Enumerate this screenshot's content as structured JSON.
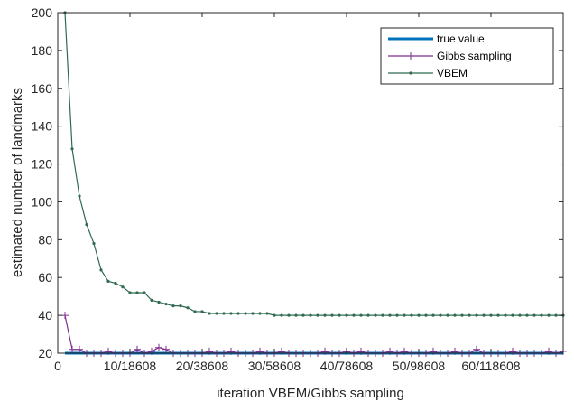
{
  "chart_data": {
    "type": "line",
    "title": "",
    "xlabel": "iteration VBEM/Gibbs sampling",
    "ylabel": "estimated number of landmarks",
    "xlim": [
      0,
      70
    ],
    "ylim": [
      20,
      200
    ],
    "yticks": [
      20,
      40,
      60,
      80,
      100,
      120,
      140,
      160,
      180,
      200
    ],
    "xticks": [
      0,
      10,
      20,
      30,
      40,
      50,
      60
    ],
    "xtick_labels": [
      "0",
      "10/18608",
      "20/38608",
      "30/58608",
      "40/78608",
      "50/98608",
      "60/118608"
    ],
    "grid": false,
    "legend_position": "top-right",
    "series": [
      {
        "name": "true value",
        "color": "#0072BD",
        "marker": "none",
        "x": [
          1,
          70
        ],
        "values": [
          20,
          20
        ]
      },
      {
        "name": "Gibbs sampling",
        "color": "#7E2F8E",
        "marker": "plus",
        "x": [
          1,
          2,
          3,
          4,
          5,
          6,
          7,
          8,
          9,
          10,
          11,
          12,
          13,
          14,
          15,
          16,
          17,
          18,
          19,
          20,
          21,
          22,
          23,
          24,
          25,
          26,
          27,
          28,
          29,
          30,
          31,
          32,
          33,
          34,
          35,
          36,
          37,
          38,
          39,
          40,
          41,
          42,
          43,
          44,
          45,
          46,
          47,
          48,
          49,
          50,
          51,
          52,
          53,
          54,
          55,
          56,
          57,
          58,
          59,
          60,
          61,
          62,
          63,
          64,
          65,
          66,
          67,
          68,
          69,
          70
        ],
        "values": [
          40,
          22,
          22,
          20,
          20,
          20,
          21,
          20,
          20,
          20,
          22,
          20,
          21,
          23,
          22,
          20,
          20,
          20,
          20,
          20,
          21,
          20,
          20,
          21,
          20,
          20,
          20,
          21,
          20,
          20,
          21,
          20,
          20,
          20,
          20,
          20,
          21,
          20,
          20,
          21,
          20,
          21,
          20,
          20,
          20,
          21,
          20,
          21,
          20,
          20,
          20,
          21,
          20,
          20,
          21,
          20,
          20,
          22,
          20,
          20,
          20,
          20,
          21,
          20,
          20,
          20,
          20,
          21,
          20,
          21
        ]
      },
      {
        "name": "VBEM",
        "color": "#2F6B50",
        "marker": "dot",
        "x": [
          1,
          2,
          3,
          4,
          5,
          6,
          7,
          8,
          9,
          10,
          11,
          12,
          13,
          14,
          15,
          16,
          17,
          18,
          19,
          20,
          21,
          22,
          23,
          24,
          25,
          26,
          27,
          28,
          29,
          30,
          31,
          32,
          33,
          34,
          35,
          36,
          37,
          38,
          39,
          40,
          41,
          42,
          43,
          44,
          45,
          46,
          47,
          48,
          49,
          50,
          51,
          52,
          53,
          54,
          55,
          56,
          57,
          58,
          59,
          60,
          61,
          62,
          63,
          64,
          65,
          66,
          67,
          68,
          69,
          70
        ],
        "values": [
          200,
          128,
          103,
          88,
          78,
          64,
          58,
          57,
          55,
          52,
          52,
          52,
          48,
          47,
          46,
          45,
          45,
          44,
          42,
          42,
          41,
          41,
          41,
          41,
          41,
          41,
          41,
          41,
          41,
          40,
          40,
          40,
          40,
          40,
          40,
          40,
          40,
          40,
          40,
          40,
          40,
          40,
          40,
          40,
          40,
          40,
          40,
          40,
          40,
          40,
          40,
          40,
          40,
          40,
          40,
          40,
          40,
          40,
          40,
          40,
          40,
          40,
          40,
          40,
          40,
          40,
          40,
          40,
          40,
          40
        ]
      }
    ]
  }
}
